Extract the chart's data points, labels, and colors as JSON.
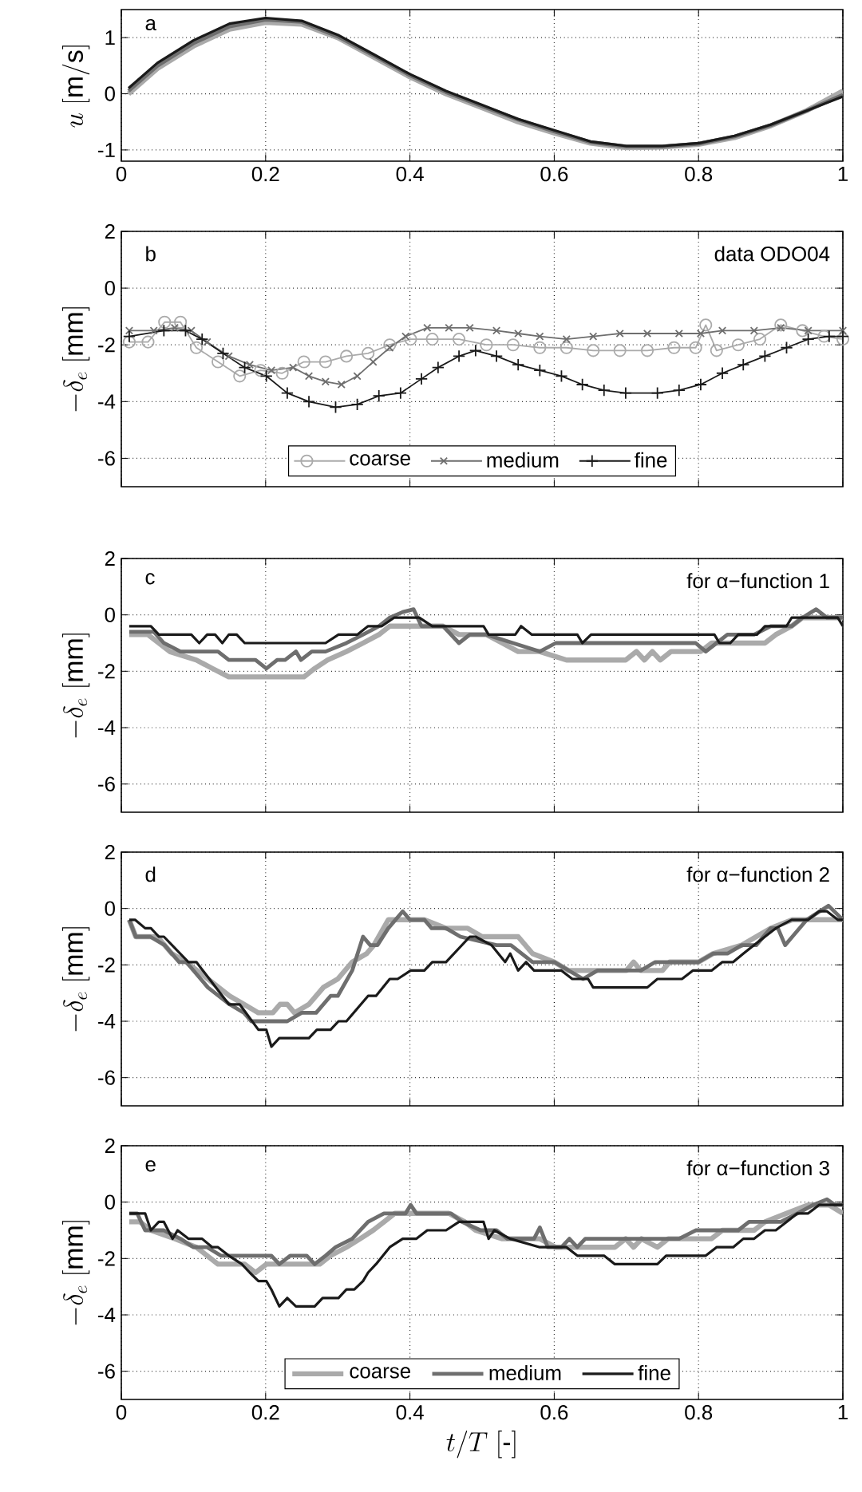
{
  "chart_data": [
    {
      "type": "line",
      "ylabel": "u\\ [\\mathrm{m/s}]",
      "annotations": [
        "a"
      ],
      "grid": true,
      "xlim": [
        0,
        1
      ],
      "xticks": [
        0,
        0.2,
        0.4,
        0.6,
        0.8,
        1
      ],
      "ylim": [
        -1.2,
        1.5
      ],
      "yticks": [
        -1,
        0,
        1
      ],
      "x": [
        0.01,
        0.05,
        0.1,
        0.15,
        0.2,
        0.25,
        0.3,
        0.35,
        0.4,
        0.45,
        0.5,
        0.55,
        0.6,
        0.65,
        0.7,
        0.75,
        0.8,
        0.85,
        0.9,
        0.95,
        1.0
      ],
      "series": [
        {
          "color": "#aaaaaa",
          "values": [
            0.0,
            0.45,
            0.85,
            1.15,
            1.27,
            1.24,
            1.0,
            0.65,
            0.3,
            0.0,
            -0.25,
            -0.5,
            -0.7,
            -0.88,
            -0.96,
            -0.95,
            -0.9,
            -0.78,
            -0.57,
            -0.3,
            0.05
          ]
        },
        {
          "color": "#6e6e6e",
          "values": [
            0.05,
            0.5,
            0.9,
            1.2,
            1.32,
            1.28,
            1.02,
            0.68,
            0.33,
            0.03,
            -0.22,
            -0.46,
            -0.67,
            -0.86,
            -0.94,
            -0.94,
            -0.89,
            -0.76,
            -0.56,
            -0.3,
            -0.02
          ]
        },
        {
          "color": "#1a1a1a",
          "values": [
            0.1,
            0.55,
            0.95,
            1.25,
            1.35,
            1.3,
            1.05,
            0.7,
            0.35,
            0.05,
            -0.2,
            -0.45,
            -0.65,
            -0.85,
            -0.93,
            -0.93,
            -0.88,
            -0.75,
            -0.55,
            -0.3,
            -0.05
          ]
        }
      ]
    },
    {
      "type": "line",
      "ylabel": "-\\delta_e\\ [\\mathrm{mm}]",
      "annotations": [
        "b",
        "data ODO04"
      ],
      "grid": true,
      "legend": "bottom",
      "tick_labels": "y",
      "xlim": [
        0,
        1
      ],
      "xticks": [
        0,
        0.2,
        0.4,
        0.6,
        0.8,
        1
      ],
      "ylim": [
        -7,
        2
      ],
      "yticks": [
        -6,
        -4,
        -2,
        0,
        2
      ],
      "series": [
        {
          "name": "coarse",
          "color": "#aaaaaa",
          "marker": "circle",
          "x": [
            0.011,
            0.037,
            0.06,
            0.082,
            0.104,
            0.134,
            0.164,
            0.193,
            0.223,
            0.253,
            0.283,
            0.312,
            0.342,
            0.372,
            0.401,
            0.431,
            0.468,
            0.506,
            0.543,
            0.58,
            0.617,
            0.654,
            0.691,
            0.729,
            0.766,
            0.796,
            0.81,
            0.825,
            0.855,
            0.885,
            0.914,
            0.944,
            0.974,
            1.0
          ],
          "values": [
            -1.9,
            -1.9,
            -1.2,
            -1.2,
            -2.1,
            -2.6,
            -3.1,
            -2.9,
            -3.0,
            -2.6,
            -2.6,
            -2.4,
            -2.3,
            -2.0,
            -1.8,
            -1.8,
            -1.8,
            -2.0,
            -2.0,
            -2.1,
            -2.1,
            -2.2,
            -2.2,
            -2.2,
            -2.1,
            -2.1,
            -1.3,
            -2.2,
            -2.0,
            -1.8,
            -1.3,
            -1.5,
            -1.7,
            -1.8
          ]
        },
        {
          "name": "medium",
          "color": "#6e6e6e",
          "marker": "cross",
          "x": [
            0.011,
            0.045,
            0.074,
            0.097,
            0.119,
            0.149,
            0.178,
            0.208,
            0.238,
            0.26,
            0.283,
            0.305,
            0.327,
            0.349,
            0.372,
            0.394,
            0.424,
            0.454,
            0.483,
            0.52,
            0.55,
            0.58,
            0.617,
            0.654,
            0.691,
            0.729,
            0.773,
            0.803,
            0.833,
            0.877,
            0.914,
            0.952,
            1.0
          ],
          "values": [
            -1.5,
            -1.5,
            -1.4,
            -1.5,
            -1.9,
            -2.4,
            -2.7,
            -2.9,
            -2.8,
            -3.1,
            -3.3,
            -3.4,
            -3.1,
            -2.6,
            -2.1,
            -1.7,
            -1.4,
            -1.4,
            -1.4,
            -1.5,
            -1.6,
            -1.7,
            -1.8,
            -1.7,
            -1.6,
            -1.6,
            -1.6,
            -1.6,
            -1.5,
            -1.5,
            -1.4,
            -1.5,
            -1.5
          ]
        },
        {
          "name": "fine",
          "color": "#1a1a1a",
          "marker": "plus",
          "x": [
            0.011,
            0.059,
            0.089,
            0.112,
            0.141,
            0.171,
            0.201,
            0.23,
            0.26,
            0.297,
            0.327,
            0.357,
            0.387,
            0.416,
            0.439,
            0.468,
            0.491,
            0.52,
            0.55,
            0.58,
            0.61,
            0.639,
            0.669,
            0.699,
            0.743,
            0.773,
            0.803,
            0.833,
            0.862,
            0.892,
            0.922,
            0.952,
            0.981,
            1.0
          ],
          "values": [
            -1.7,
            -1.5,
            -1.5,
            -1.8,
            -2.3,
            -2.8,
            -3.1,
            -3.7,
            -4.0,
            -4.2,
            -4.1,
            -3.8,
            -3.7,
            -3.2,
            -2.8,
            -2.4,
            -2.2,
            -2.4,
            -2.7,
            -2.9,
            -3.1,
            -3.4,
            -3.6,
            -3.7,
            -3.7,
            -3.6,
            -3.4,
            -3.0,
            -2.7,
            -2.4,
            -2.1,
            -1.8,
            -1.7,
            -1.7
          ]
        }
      ]
    },
    {
      "type": "line",
      "ylabel": "-\\delta_e\\ [\\mathrm{mm}]",
      "annotations": [
        "c",
        "for α−function 1"
      ],
      "grid": true,
      "tick_labels": "y",
      "xlim": [
        0,
        1
      ],
      "xticks": [
        0,
        0.2,
        0.4,
        0.6,
        0.8,
        1
      ],
      "ylim": [
        -7,
        2
      ],
      "yticks": [
        -6,
        -4,
        -2,
        0,
        2
      ],
      "series": [
        {
          "color": "#aaaaaa",
          "x": [
            0.011,
            0.037,
            0.067,
            0.104,
            0.126,
            0.149,
            0.253,
            0.268,
            0.286,
            0.312,
            0.335,
            0.357,
            0.372,
            0.446,
            0.468,
            0.506,
            0.528,
            0.55,
            0.58,
            0.617,
            0.699,
            0.714,
            0.725,
            0.736,
            0.747,
            0.762,
            0.803,
            0.818,
            0.892,
            0.907,
            0.929,
            0.944,
            1.0
          ],
          "values": [
            -0.7,
            -0.7,
            -1.3,
            -1.6,
            -1.9,
            -2.2,
            -2.2,
            -1.9,
            -1.6,
            -1.3,
            -1.0,
            -0.7,
            -0.4,
            -0.4,
            -0.7,
            -0.7,
            -1.0,
            -1.3,
            -1.3,
            -1.6,
            -1.6,
            -1.3,
            -1.6,
            -1.3,
            -1.6,
            -1.3,
            -1.3,
            -1.0,
            -1.0,
            -0.7,
            -0.4,
            -0.1,
            -0.1
          ]
        },
        {
          "color": "#6e6e6e",
          "x": [
            0.011,
            0.045,
            0.059,
            0.082,
            0.134,
            0.149,
            0.186,
            0.201,
            0.216,
            0.227,
            0.242,
            0.249,
            0.264,
            0.283,
            0.312,
            0.335,
            0.357,
            0.372,
            0.39,
            0.405,
            0.416,
            0.446,
            0.468,
            0.483,
            0.506,
            0.543,
            0.58,
            0.602,
            0.796,
            0.81,
            0.825,
            0.84,
            0.877,
            0.9,
            0.929,
            0.944,
            0.963,
            0.978,
            1.0
          ],
          "values": [
            -0.6,
            -0.6,
            -1.0,
            -1.3,
            -1.3,
            -1.6,
            -1.6,
            -1.9,
            -1.6,
            -1.6,
            -1.3,
            -1.6,
            -1.3,
            -1.3,
            -1.0,
            -0.7,
            -0.4,
            -0.1,
            0.1,
            0.2,
            -0.4,
            -0.4,
            -1.0,
            -0.7,
            -0.7,
            -1.0,
            -1.3,
            -1.0,
            -1.0,
            -1.3,
            -1.0,
            -0.7,
            -0.7,
            -0.4,
            -0.4,
            -0.1,
            0.2,
            -0.1,
            -0.1
          ]
        },
        {
          "color": "#1a1a1a",
          "x": [
            0.011,
            0.041,
            0.052,
            0.097,
            0.108,
            0.119,
            0.13,
            0.14,
            0.149,
            0.16,
            0.171,
            0.283,
            0.301,
            0.327,
            0.342,
            0.361,
            0.378,
            0.413,
            0.431,
            0.502,
            0.509,
            0.546,
            0.554,
            0.569,
            0.632,
            0.639,
            0.651,
            0.822,
            0.829,
            0.844,
            0.855,
            0.881,
            0.892,
            0.922,
            0.929,
            0.993,
            1.0
          ],
          "values": [
            -0.4,
            -0.4,
            -0.7,
            -0.7,
            -1.0,
            -0.7,
            -0.7,
            -1.0,
            -0.7,
            -0.7,
            -1.0,
            -1.0,
            -0.7,
            -0.7,
            -0.4,
            -0.4,
            -0.1,
            -0.1,
            -0.4,
            -0.4,
            -0.7,
            -0.7,
            -0.4,
            -0.7,
            -0.7,
            -1.0,
            -0.7,
            -0.7,
            -1.0,
            -1.0,
            -0.7,
            -0.7,
            -0.4,
            -0.4,
            -0.1,
            -0.1,
            -0.4
          ]
        }
      ]
    },
    {
      "type": "line",
      "ylabel": "-\\delta_e\\ [\\mathrm{mm}]",
      "annotations": [
        "d",
        "for α−function 2"
      ],
      "grid": true,
      "tick_labels": "y",
      "xlim": [
        0,
        1
      ],
      "xticks": [
        0,
        0.2,
        0.4,
        0.6,
        0.8,
        1
      ],
      "ylim": [
        -7,
        2
      ],
      "yticks": [
        -6,
        -4,
        -2,
        0,
        2
      ],
      "series": [
        {
          "color": "#aaaaaa",
          "x": [
            0.011,
            0.02,
            0.05,
            0.07,
            0.09,
            0.12,
            0.15,
            0.17,
            0.19,
            0.21,
            0.22,
            0.23,
            0.24,
            0.26,
            0.28,
            0.3,
            0.32,
            0.34,
            0.35,
            0.37,
            0.42,
            0.45,
            0.48,
            0.5,
            0.55,
            0.57,
            0.6,
            0.62,
            0.7,
            0.71,
            0.72,
            0.75,
            0.76,
            0.8,
            0.82,
            0.86,
            0.88,
            0.9,
            0.93,
            1.0
          ],
          "values": [
            -0.4,
            -1.0,
            -1.0,
            -1.6,
            -1.9,
            -2.5,
            -3.1,
            -3.4,
            -3.7,
            -3.7,
            -3.4,
            -3.4,
            -3.7,
            -3.4,
            -2.8,
            -2.5,
            -1.9,
            -1.6,
            -1.3,
            -0.4,
            -0.4,
            -0.7,
            -0.7,
            -1.0,
            -1.0,
            -1.6,
            -1.9,
            -2.2,
            -2.2,
            -1.9,
            -2.2,
            -2.2,
            -1.9,
            -1.9,
            -1.6,
            -1.3,
            -1.0,
            -0.7,
            -0.4,
            -0.4
          ]
        },
        {
          "color": "#6e6e6e",
          "x": [
            0.011,
            0.02,
            0.04,
            0.06,
            0.08,
            0.09,
            0.12,
            0.15,
            0.17,
            0.18,
            0.23,
            0.25,
            0.27,
            0.29,
            0.3,
            0.32,
            0.335,
            0.345,
            0.355,
            0.37,
            0.39,
            0.4,
            0.42,
            0.43,
            0.45,
            0.47,
            0.52,
            0.54,
            0.57,
            0.6,
            0.64,
            0.66,
            0.72,
            0.74,
            0.8,
            0.82,
            0.84,
            0.86,
            0.88,
            0.9,
            0.91,
            0.92,
            0.93,
            0.95,
            0.98,
            1.0
          ],
          "values": [
            -0.4,
            -1.0,
            -1.0,
            -1.3,
            -1.9,
            -1.9,
            -2.8,
            -3.4,
            -3.7,
            -4.0,
            -4.0,
            -3.7,
            -3.7,
            -3.1,
            -3.1,
            -2.2,
            -1.0,
            -1.3,
            -1.3,
            -0.7,
            -0.1,
            -0.4,
            -0.4,
            -0.7,
            -0.7,
            -1.0,
            -1.3,
            -1.3,
            -1.9,
            -1.9,
            -2.5,
            -2.2,
            -2.2,
            -1.9,
            -1.9,
            -1.6,
            -1.6,
            -1.3,
            -1.3,
            -0.7,
            -0.7,
            -1.3,
            -1.0,
            -0.4,
            0.1,
            -0.4
          ]
        },
        {
          "color": "#1a1a1a",
          "x": [
            0.011,
            0.019,
            0.033,
            0.041,
            0.052,
            0.059,
            0.093,
            0.104,
            0.149,
            0.164,
            0.19,
            0.201,
            0.208,
            0.219,
            0.26,
            0.271,
            0.29,
            0.301,
            0.312,
            0.342,
            0.353,
            0.372,
            0.383,
            0.401,
            0.42,
            0.431,
            0.45,
            0.483,
            0.491,
            0.513,
            0.532,
            0.539,
            0.55,
            0.561,
            0.572,
            0.61,
            0.625,
            0.647,
            0.654,
            0.729,
            0.743,
            0.777,
            0.792,
            0.818,
            0.833,
            0.848,
            0.862,
            0.877,
            0.892,
            0.907,
            0.929,
            0.952,
            0.967,
            0.978,
            0.993,
            1.0
          ],
          "values": [
            -0.4,
            -0.4,
            -0.7,
            -0.7,
            -1.0,
            -1.0,
            -1.9,
            -1.9,
            -3.4,
            -3.4,
            -4.3,
            -4.3,
            -4.9,
            -4.6,
            -4.6,
            -4.3,
            -4.3,
            -4.0,
            -4.0,
            -3.1,
            -3.1,
            -2.5,
            -2.5,
            -2.2,
            -2.2,
            -1.9,
            -1.9,
            -1.0,
            -1.0,
            -1.3,
            -1.9,
            -1.6,
            -2.2,
            -1.9,
            -2.2,
            -2.2,
            -2.5,
            -2.5,
            -2.8,
            -2.8,
            -2.5,
            -2.5,
            -2.2,
            -2.2,
            -1.9,
            -1.9,
            -1.6,
            -1.3,
            -1.0,
            -0.7,
            -0.4,
            -0.4,
            -0.1,
            -0.1,
            -0.4,
            -0.4
          ]
        }
      ]
    },
    {
      "type": "line",
      "xlabel": "t/T\\ [\\textrm{-}]",
      "ylabel": "-\\delta_e\\ [\\mathrm{mm}]",
      "annotations": [
        "e",
        "for α−function 3"
      ],
      "grid": true,
      "legend": "bottom",
      "xlim": [
        0,
        1
      ],
      "xticks": [
        0,
        0.2,
        0.4,
        0.6,
        0.8,
        1
      ],
      "ylim": [
        -7,
        2
      ],
      "yticks": [
        -6,
        -4,
        -2,
        0,
        2
      ],
      "series": [
        {
          "name": "coarse",
          "color": "#aaaaaa",
          "x": [
            0.011,
            0.026,
            0.041,
            0.074,
            0.104,
            0.119,
            0.134,
            0.171,
            0.186,
            0.201,
            0.275,
            0.29,
            0.312,
            0.331,
            0.349,
            0.364,
            0.379,
            0.454,
            0.476,
            0.491,
            0.528,
            0.58,
            0.602,
            0.684,
            0.699,
            0.71,
            0.721,
            0.743,
            0.758,
            0.818,
            0.833,
            0.877,
            0.892,
            0.922,
            0.952,
            0.981,
            1.0
          ],
          "values": [
            -0.7,
            -0.7,
            -1.0,
            -1.3,
            -1.6,
            -1.9,
            -2.2,
            -2.2,
            -2.5,
            -2.2,
            -2.2,
            -1.9,
            -1.6,
            -1.3,
            -1.0,
            -0.7,
            -0.4,
            -0.4,
            -0.7,
            -1.0,
            -1.3,
            -1.3,
            -1.6,
            -1.6,
            -1.3,
            -1.6,
            -1.3,
            -1.6,
            -1.3,
            -1.3,
            -1.0,
            -1.0,
            -0.7,
            -0.4,
            -0.1,
            -0.1,
            -0.4
          ]
        },
        {
          "name": "medium",
          "color": "#6e6e6e",
          "x": [
            0.011,
            0.022,
            0.033,
            0.059,
            0.082,
            0.1,
            0.119,
            0.138,
            0.208,
            0.219,
            0.234,
            0.257,
            0.268,
            0.283,
            0.297,
            0.32,
            0.342,
            0.364,
            0.394,
            0.401,
            0.409,
            0.457,
            0.472,
            0.498,
            0.52,
            0.535,
            0.572,
            0.58,
            0.591,
            0.61,
            0.621,
            0.632,
            0.643,
            0.773,
            0.796,
            0.855,
            0.87,
            0.914,
            0.937,
            0.959,
            0.978,
            0.989,
            1.0
          ],
          "values": [
            -0.4,
            -0.4,
            -1.0,
            -1.0,
            -1.3,
            -1.6,
            -1.6,
            -1.9,
            -1.9,
            -2.2,
            -1.9,
            -1.9,
            -2.2,
            -1.9,
            -1.6,
            -1.3,
            -0.7,
            -0.4,
            -0.4,
            -0.1,
            -0.4,
            -0.4,
            -0.7,
            -1.0,
            -1.0,
            -1.3,
            -1.3,
            -0.9,
            -1.6,
            -1.6,
            -1.3,
            -1.6,
            -1.3,
            -1.3,
            -1.0,
            -1.0,
            -0.7,
            -0.7,
            -0.4,
            -0.1,
            0.1,
            -0.1,
            -0.1
          ]
        },
        {
          "name": "fine",
          "color": "#1a1a1a",
          "x": [
            0.011,
            0.033,
            0.041,
            0.052,
            0.059,
            0.071,
            0.078,
            0.093,
            0.112,
            0.126,
            0.134,
            0.149,
            0.167,
            0.178,
            0.19,
            0.201,
            0.208,
            0.219,
            0.23,
            0.242,
            0.268,
            0.279,
            0.301,
            0.312,
            0.323,
            0.335,
            0.342,
            0.353,
            0.372,
            0.39,
            0.409,
            0.424,
            0.45,
            0.468,
            0.502,
            0.509,
            0.517,
            0.539,
            0.58,
            0.617,
            0.632,
            0.669,
            0.684,
            0.743,
            0.755,
            0.81,
            0.825,
            0.848,
            0.862,
            0.877,
            0.892,
            0.907,
            0.922,
            0.937,
            0.952,
            0.967,
            1.0
          ],
          "values": [
            -0.4,
            -0.4,
            -1.0,
            -0.7,
            -0.7,
            -1.3,
            -1.0,
            -1.3,
            -1.3,
            -1.6,
            -1.6,
            -1.9,
            -2.2,
            -2.5,
            -2.8,
            -2.8,
            -3.1,
            -3.7,
            -3.4,
            -3.7,
            -3.7,
            -3.4,
            -3.4,
            -3.1,
            -3.1,
            -2.8,
            -2.5,
            -2.2,
            -1.6,
            -1.3,
            -1.3,
            -1.0,
            -1.0,
            -0.7,
            -0.7,
            -1.3,
            -1.0,
            -1.3,
            -1.6,
            -1.6,
            -1.9,
            -1.9,
            -2.2,
            -2.2,
            -1.9,
            -1.9,
            -1.6,
            -1.6,
            -1.3,
            -1.3,
            -1.0,
            -1.0,
            -0.7,
            -0.4,
            -0.4,
            -0.1,
            -0.1
          ]
        }
      ]
    }
  ]
}
